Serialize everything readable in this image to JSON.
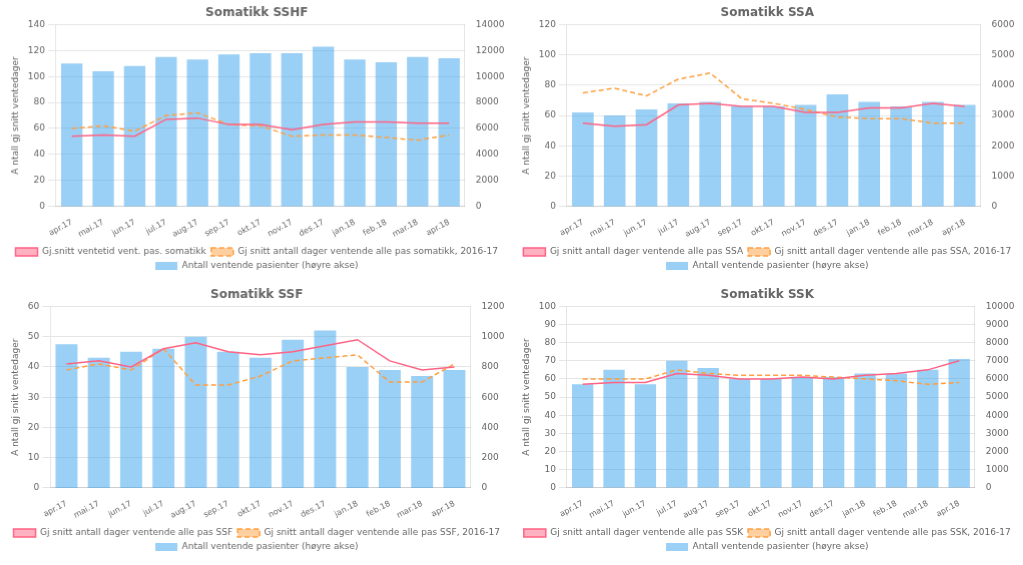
{
  "chart_data": [
    {
      "type": "bar",
      "title": "Somatikk SSHF",
      "categories": [
        "apr.17",
        "mai.17",
        "jun.17",
        "jul.17",
        "aug.17",
        "sep.17",
        "okt.17",
        "nov.17",
        "des.17",
        "jan.18",
        "feb.18",
        "mar.18",
        "apr.18"
      ],
      "series": [
        {
          "name": "Antall ventende pasienter (høyre akse)",
          "type": "bar",
          "axis": "y2",
          "values": [
            11000,
            10400,
            10800,
            11500,
            11300,
            11700,
            11800,
            11800,
            12300,
            11300,
            11100,
            11500,
            11400
          ]
        },
        {
          "name": "Gj.snitt ventetid vent. pas. somatikk",
          "type": "line",
          "line_style": "solid",
          "values": [
            54,
            55,
            54,
            67,
            68,
            63,
            63,
            59,
            63,
            65,
            65,
            64,
            64
          ]
        },
        {
          "name": "Gj snitt antall dager ventende alle pas somatikk, 2016-17",
          "type": "line",
          "line_style": "dashed",
          "values": [
            60,
            62,
            58,
            70,
            72,
            63,
            62,
            54,
            55,
            55,
            53,
            51,
            55
          ]
        }
      ],
      "ylabel": "A ntall gj snitt ventedager",
      "ylim": [
        0,
        140
      ],
      "yticks": [
        0,
        20,
        40,
        60,
        80,
        100,
        120,
        140
      ],
      "y2lim": [
        0,
        14000
      ],
      "y2ticks": [
        0,
        2000,
        4000,
        6000,
        8000,
        10000,
        12000,
        14000
      ],
      "grid": true,
      "legend": "bottom"
    },
    {
      "type": "bar",
      "title": "Somatikk SSA",
      "categories": [
        "apr.17",
        "mai.17",
        "jun.17",
        "jul.17",
        "aug.17",
        "sep.17",
        "okt.17",
        "nov.17",
        "des.17",
        "jan.18",
        "feb.18",
        "mar.18",
        "apr.18"
      ],
      "series": [
        {
          "name": "Antall ventende pasienter (høyre akse)",
          "type": "bar",
          "axis": "y2",
          "values": [
            3100,
            3000,
            3200,
            3400,
            3450,
            3300,
            3300,
            3350,
            3700,
            3450,
            3300,
            3450,
            3350
          ]
        },
        {
          "name": "Gj snitt antall dager ventende alle pas SSA",
          "type": "line",
          "line_style": "solid",
          "values": [
            55,
            53,
            54,
            67,
            68,
            66,
            66,
            62,
            62,
            65,
            65,
            68,
            66
          ]
        },
        {
          "name": "Gj snitt antall dager ventende alle pas SSA, 2016-17",
          "type": "line",
          "line_style": "dashed",
          "values": [
            75,
            78,
            73,
            84,
            88,
            71,
            68,
            64,
            59,
            58,
            58,
            55,
            55
          ]
        }
      ],
      "ylabel": "A ntall gj snitt ventedager",
      "ylim": [
        0,
        120
      ],
      "yticks": [
        0,
        20,
        40,
        60,
        80,
        100,
        120
      ],
      "y2lim": [
        0,
        6000
      ],
      "y2ticks": [
        0,
        1000,
        2000,
        3000,
        4000,
        5000,
        6000
      ],
      "grid": true,
      "legend": "bottom"
    },
    {
      "type": "bar",
      "title": "Somatikk SSF",
      "categories": [
        "apr.17",
        "mai.17",
        "jun.17",
        "jul.17",
        "aug.17",
        "sep.17",
        "okt.17",
        "nov.17",
        "des.17",
        "jan.18",
        "feb.18",
        "mar.18",
        "apr.18"
      ],
      "series": [
        {
          "name": "Antall ventende pasienter (høyre akse)",
          "type": "bar",
          "axis": "y2",
          "values": [
            950,
            860,
            900,
            920,
            1000,
            900,
            860,
            980,
            1040,
            800,
            780,
            740,
            780
          ]
        },
        {
          "name": "Gj snitt antall dager ventende alle pas SSF",
          "type": "line",
          "line_style": "solid",
          "values": [
            41,
            42,
            40,
            46,
            48,
            45,
            44,
            45,
            47,
            49,
            42,
            39,
            40
          ]
        },
        {
          "name": "Gj snitt antall dager ventende alle pas SSF, 2016-17",
          "type": "line",
          "line_style": "dashed",
          "values": [
            39,
            41,
            39,
            46,
            34,
            34,
            37,
            42,
            43,
            44,
            35,
            35,
            41
          ]
        }
      ],
      "ylabel": "A ntall gj snitt ventedager",
      "ylim": [
        0,
        60
      ],
      "yticks": [
        0,
        10,
        20,
        30,
        40,
        50,
        60
      ],
      "y2lim": [
        0,
        1200
      ],
      "y2ticks": [
        0,
        200,
        400,
        600,
        800,
        1000,
        1200
      ],
      "grid": true,
      "legend": "bottom"
    },
    {
      "type": "bar",
      "title": "Somatikk SSK",
      "categories": [
        "apr.17",
        "mai.17",
        "jun.17",
        "jul.17",
        "aug.17",
        "sep.17",
        "okt.17",
        "nov.17",
        "des.17",
        "jan.18",
        "feb.18",
        "mar.18",
        "apr.18"
      ],
      "series": [
        {
          "name": "Antall ventende pasienter (høyre akse)",
          "type": "bar",
          "axis": "y2",
          "values": [
            5700,
            6500,
            5700,
            7000,
            6600,
            6000,
            6000,
            6100,
            6100,
            6300,
            6300,
            6500,
            7100
          ]
        },
        {
          "name": "Gj snitt antall dager ventende alle pas SSK",
          "type": "line",
          "line_style": "solid",
          "values": [
            57,
            58,
            58,
            63,
            62,
            60,
            60,
            61,
            60,
            62,
            63,
            65,
            70
          ]
        },
        {
          "name": "Gj snitt antall dager ventende alle pas SSK, 2016-17",
          "type": "line",
          "line_style": "dashed",
          "values": [
            60,
            60,
            60,
            65,
            63,
            62,
            62,
            62,
            61,
            60,
            59,
            57,
            58
          ]
        }
      ],
      "ylabel": "A ntall gj snitt ventedager",
      "ylim": [
        0,
        100
      ],
      "yticks": [
        0,
        10,
        20,
        30,
        40,
        50,
        60,
        70,
        80,
        90,
        100
      ],
      "y2lim": [
        0,
        10000
      ],
      "y2ticks": [
        0,
        1000,
        2000,
        3000,
        4000,
        5000,
        6000,
        7000,
        8000,
        9000,
        10000
      ],
      "grid": true,
      "legend": "bottom"
    }
  ]
}
